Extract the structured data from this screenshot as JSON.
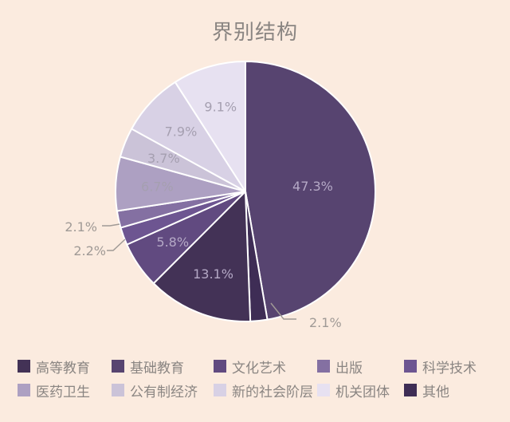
{
  "chart_data": {
    "type": "pie",
    "title": "界别结构",
    "start_angle_deg": 0,
    "direction": "clockwise",
    "slices": [
      {
        "label": "基础教育",
        "value": 47.3,
        "text": "47.3%",
        "color": "#574470"
      },
      {
        "label": "其他",
        "value": 2.1,
        "text": "2.1%",
        "color": "#3e2d55",
        "outside": true
      },
      {
        "label": "高等教育",
        "value": 13.1,
        "text": "13.1%",
        "color": "#433256"
      },
      {
        "label": "文化艺术",
        "value": 5.8,
        "text": "5.8%",
        "color": "#614a80"
      },
      {
        "label": "科学技术",
        "value": 2.2,
        "text": "2.2%",
        "color": "#6d5591",
        "outside": true
      },
      {
        "label": "出版",
        "value": 2.1,
        "text": "2.1%",
        "color": "#8470a2",
        "outside": true
      },
      {
        "label": "医药卫生",
        "value": 6.7,
        "text": "6.7%",
        "color": "#ada0c2"
      },
      {
        "label": "公有制经济",
        "value": 3.7,
        "text": "3.7%",
        "color": "#cbc3d8"
      },
      {
        "label": "新的社会阶层",
        "value": 7.9,
        "text": "7.9%",
        "color": "#d8d1e5"
      },
      {
        "label": "机关团体",
        "value": 9.1,
        "text": "9.1%",
        "color": "#e7e1f1"
      }
    ],
    "legend_position": "bottom"
  },
  "legend": {
    "items": [
      {
        "label": "高等教育",
        "color": "#433256"
      },
      {
        "label": "基础教育",
        "color": "#574470"
      },
      {
        "label": "文化艺术",
        "color": "#614a80"
      },
      {
        "label": "出版",
        "color": "#8470a2"
      },
      {
        "label": "科学技术",
        "color": "#6d5591"
      },
      {
        "label": "医药卫生",
        "color": "#ada0c2"
      },
      {
        "label": "公有制经济",
        "color": "#cbc3d8"
      },
      {
        "label": "新的社会阶层",
        "color": "#d8d1e5"
      },
      {
        "label": "机关团体",
        "color": "#e7e1f1"
      },
      {
        "label": "其他",
        "color": "#3e2d55"
      }
    ]
  }
}
